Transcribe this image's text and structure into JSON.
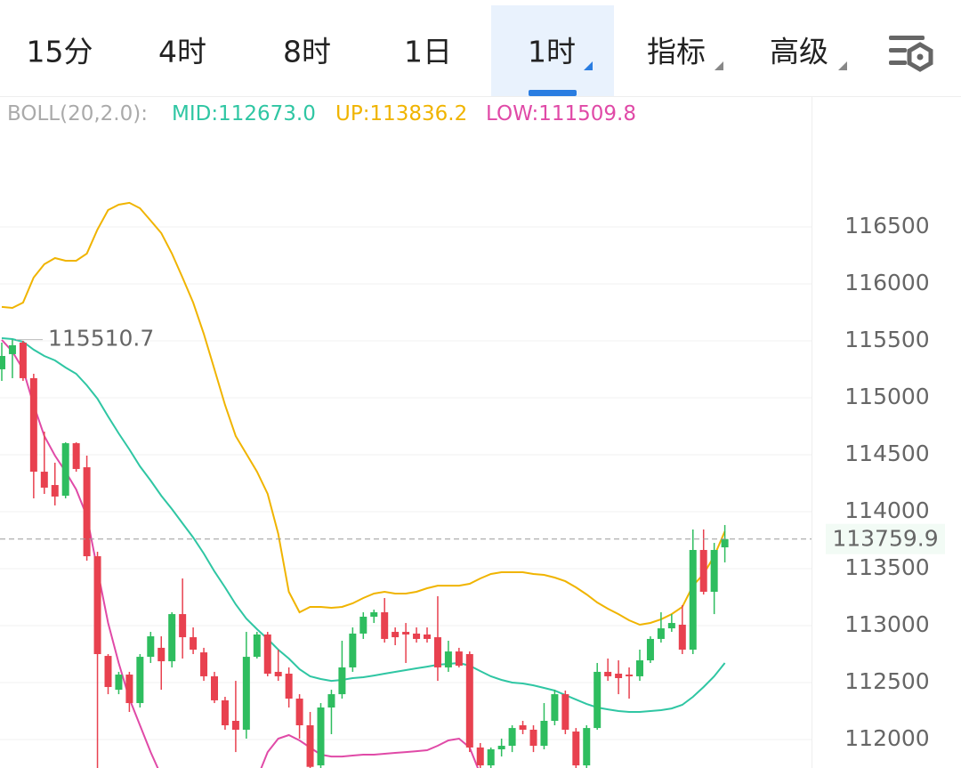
{
  "tabs": [
    "15分",
    "4时",
    "8时",
    "1日",
    "1时",
    "指标",
    "高级"
  ],
  "selected_tab": 4,
  "chart_data": {
    "type": "candlestick",
    "indicator_label": "BOLL(20,2.0):",
    "indicator_values": [
      {
        "label": "MID:112673.0",
        "color": "#2fc6a3"
      },
      {
        "label": "UP:113836.2",
        "color": "#f0b400"
      },
      {
        "label": "LOW:111509.8",
        "color": "#e04aa7"
      }
    ],
    "x": [
      null,
      null,
      null,
      null,
      null,
      null,
      null,
      null,
      null,
      null,
      null,
      null,
      null,
      null,
      null,
      null,
      null,
      null,
      null,
      null,
      null,
      null,
      null,
      null,
      null,
      null,
      null,
      null,
      null,
      null,
      null,
      null,
      null,
      null,
      null,
      null,
      null,
      null,
      null,
      null,
      null,
      null,
      null,
      null,
      null,
      null,
      null,
      null,
      null,
      null,
      null,
      null,
      null,
      null,
      null,
      null,
      null,
      null,
      null,
      null,
      null,
      null,
      null,
      null,
      null,
      null,
      null,
      null,
      null
    ],
    "open": [
      115250,
      115383,
      115484,
      115172,
      114351,
      114234,
      114140,
      114601,
      114390,
      113609,
      112734,
      112437,
      112570,
      112320,
      112726,
      112805,
      112687,
      113101,
      112898,
      112765,
      112555,
      112344,
      112164,
      112086,
      112726,
      112922,
      112594,
      112578,
      112359,
      112125,
      111773,
      112281,
      112398,
      112633,
      112930,
      113078,
      113117,
      112945,
      112945,
      112930,
      112922,
      112898,
      112633,
      112773,
      112750,
      111930,
      111773,
      111914,
      111945,
      112125,
      112086,
      111945,
      112164,
      112398,
      112070,
      111773,
      112101,
      112594,
      112578,
      112570,
      112555,
      112695,
      112883,
      112976,
      113008,
      112789,
      113664,
      113297,
      113687
    ],
    "high": [
      115484,
      115510.7,
      115500,
      115211,
      114703,
      114430,
      114609,
      114609,
      114492,
      113648,
      112750,
      112594,
      112594,
      112750,
      112945,
      112906,
      113117,
      113414,
      112984,
      112805,
      112594,
      112375,
      112515,
      112945,
      112945,
      112945,
      112789,
      112633,
      112398,
      112242,
      112320,
      112437,
      112867,
      112984,
      113117,
      113140,
      113242,
      112984,
      113023,
      112984,
      112984,
      113258,
      112867,
      112805,
      112773,
      111969,
      111930,
      112008,
      112125,
      112164,
      112125,
      112320,
      112437,
      112430,
      112101,
      112125,
      112672,
      112711,
      112695,
      112633,
      112789,
      112906,
      113117,
      113101,
      113180,
      113844,
      113844,
      113726,
      113883
    ],
    "low": [
      115148,
      115172,
      115148,
      114117,
      114156,
      114055,
      114117,
      114351,
      113570,
      111600,
      112398,
      112398,
      112242,
      112281,
      112672,
      112437,
      112633,
      112711,
      112750,
      112515,
      112320,
      112086,
      111890,
      112008,
      112711,
      112555,
      112515,
      112281,
      112008,
      111700,
      111700,
      112047,
      112359,
      112594,
      112883,
      113023,
      112851,
      112828,
      112672,
      112851,
      112851,
      112515,
      112594,
      112633,
      111890,
      111700,
      111700,
      111851,
      111890,
      112047,
      111890,
      111914,
      112125,
      112047,
      111700,
      111700,
      112086,
      112515,
      112398,
      112359,
      112515,
      112672,
      112851,
      112945,
      112750,
      112750,
      113273,
      113101,
      113555
    ],
    "close": [
      115367,
      115461,
      115172,
      114351,
      114211,
      114133,
      114601,
      114375,
      113609,
      112750,
      112461,
      112570,
      112320,
      112726,
      112906,
      112687,
      113101,
      112898,
      112789,
      112555,
      112344,
      112125,
      112086,
      112726,
      112922,
      112578,
      112555,
      112359,
      112125,
      111760,
      112281,
      112398,
      112633,
      112930,
      113078,
      113117,
      112883,
      112898,
      112922,
      112883,
      112883,
      112633,
      112773,
      112648,
      111930,
      111773,
      111914,
      111945,
      112101,
      112086,
      111945,
      112164,
      112398,
      112086,
      111773,
      112101,
      112594,
      112555,
      112539,
      112555,
      112695,
      112883,
      112976,
      113023,
      112789,
      113664,
      113297,
      113664,
      113759.9
    ],
    "up_color": "#2ebd5f",
    "down_color": "#e8414f",
    "series": [
      {
        "color": "#f0b400",
        "values": [
          115797,
          115789,
          115836,
          116055,
          116172,
          116226,
          116203,
          116203,
          116266,
          116476,
          116648,
          116695,
          116711,
          116664,
          116555,
          116445,
          116266,
          116055,
          115836,
          115562,
          115250,
          114937,
          114664,
          114508,
          114351,
          114156,
          113805,
          113297,
          113117,
          113164,
          113164,
          113156,
          113164,
          113195,
          113242,
          113281,
          113297,
          113281,
          113281,
          113297,
          113328,
          113351,
          113351,
          113351,
          113367,
          113414,
          113453,
          113469,
          113469,
          113469,
          113453,
          113445,
          113422,
          113390,
          113336,
          113273,
          113203,
          113148,
          113101,
          113047,
          113008,
          113023,
          113055,
          113101,
          113164,
          113351,
          113453,
          113609,
          113828
        ]
      },
      {
        "color": "#2fc6a3",
        "values": [
          115523,
          115515,
          115492,
          115422,
          115367,
          115328,
          115265,
          115211,
          115109,
          114992,
          114836,
          114687,
          114547,
          114398,
          114273,
          114140,
          114023,
          113898,
          113773,
          113633,
          113476,
          113336,
          113187,
          113062,
          112969,
          112883,
          112789,
          112711,
          112617,
          112555,
          112531,
          112515,
          112523,
          112539,
          112547,
          112562,
          112578,
          112594,
          112609,
          112625,
          112640,
          112656,
          112664,
          112672,
          112648,
          112601,
          112555,
          112523,
          112500,
          112492,
          112476,
          112453,
          112430,
          112390,
          112351,
          112312,
          112281,
          112265,
          112250,
          112242,
          112242,
          112250,
          112258,
          112273,
          112305,
          112375,
          112461,
          112555,
          112672
        ]
      },
      {
        "color": "#e04aa7",
        "values": [
          115508,
          115406,
          115250,
          114937,
          114664,
          114492,
          114351,
          114195,
          113961,
          113492,
          113023,
          112672,
          112359,
          112125,
          111890,
          111680,
          null,
          null,
          null,
          null,
          null,
          null,
          null,
          null,
          111656,
          111890,
          112008,
          112039,
          111992,
          111930,
          111867,
          111851,
          111851,
          111859,
          111867,
          111867,
          111875,
          111883,
          111890,
          111898,
          111906,
          111945,
          111992,
          112008,
          111930,
          111695,
          null,
          null,
          null,
          null,
          null,
          null,
          null,
          null,
          null,
          null,
          null,
          null,
          null,
          null,
          null,
          null,
          null,
          null,
          null,
          null,
          null,
          null,
          null
        ]
      }
    ],
    "max_label": 115510.7,
    "last_price": 113759.9,
    "ylim": [
      111750,
      117648
    ],
    "yticks": [
      112000,
      112500,
      113000,
      113500,
      114000,
      114500,
      115000,
      115500,
      116000,
      116500
    ],
    "grid": true
  }
}
